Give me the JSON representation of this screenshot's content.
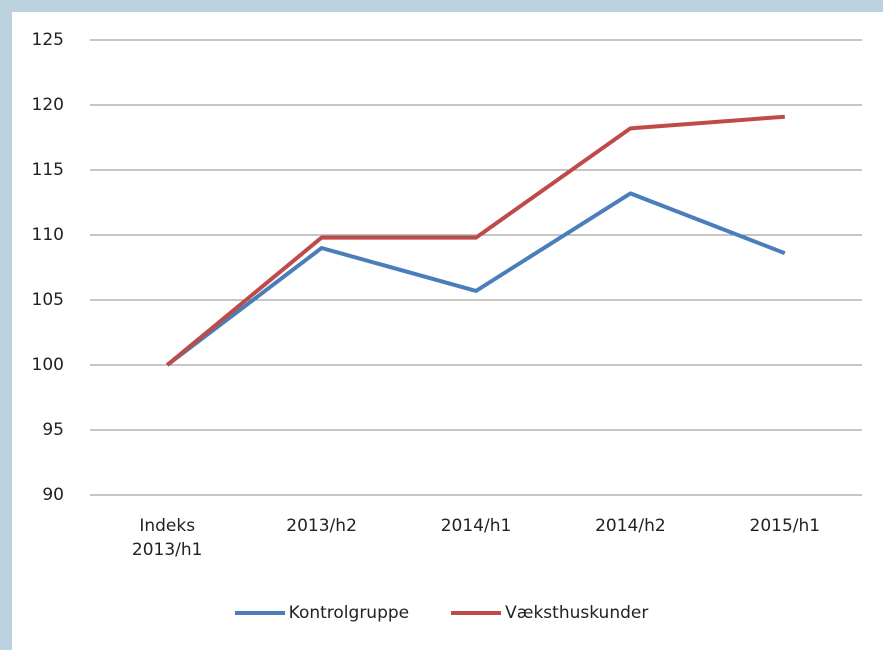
{
  "chart_data": {
    "type": "line",
    "categories": [
      "Indeks 2013/h1",
      "2013/h2",
      "2014/h1",
      "2014/h2",
      "2015/h1"
    ],
    "series": [
      {
        "name": "Kontrolgruppe",
        "color": "#4a7ebb",
        "values": [
          100,
          109,
          105.7,
          113.2,
          108.6
        ]
      },
      {
        "name": "Væksthuskunder",
        "color": "#be4b48",
        "values": [
          100,
          109.8,
          109.8,
          118.2,
          119.1
        ]
      }
    ],
    "ylim": [
      90,
      125
    ],
    "yticks": [
      90,
      95,
      100,
      105,
      110,
      115,
      120,
      125
    ],
    "grid": true,
    "legend": "bottom"
  }
}
